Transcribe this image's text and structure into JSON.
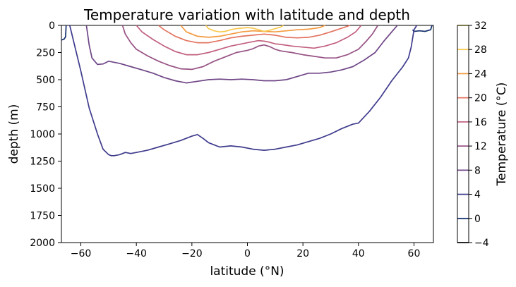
{
  "chart_data": {
    "type": "contour",
    "title": "Temperature variation with latitude and depth",
    "xlabel": "latitude (°N)",
    "ylabel": "depth (m)",
    "xlim": [
      -67,
      67
    ],
    "ylim": [
      2000,
      0
    ],
    "x_ticks": [
      -60,
      -40,
      -20,
      0,
      20,
      40,
      60
    ],
    "y_ticks": [
      0,
      250,
      500,
      750,
      1000,
      1250,
      1500,
      1750,
      2000
    ],
    "x_tick_labels": [
      "−60",
      "−40",
      "−20",
      "0",
      "20",
      "40",
      "60"
    ],
    "y_tick_labels": [
      "0",
      "250",
      "500",
      "750",
      "1000",
      "1250",
      "1500",
      "1750",
      "2000"
    ],
    "grid": false,
    "colorbar": {
      "label": "Temperature (°C)",
      "ticks": [
        -4,
        0,
        4,
        8,
        12,
        16,
        20,
        24,
        28,
        32
      ],
      "tick_labels": [
        "−4",
        "0",
        "4",
        "8",
        "12",
        "16",
        "20",
        "24",
        "28",
        "32"
      ],
      "colors": {
        "-4": "#000004",
        "0": "#13306d",
        "4": "#3e3b8c",
        "8": "#6e4586",
        "12": "#975184",
        "16": "#c25f7e",
        "20": "#e2735f",
        "24": "#f39a3f",
        "28": "#f8c84f",
        "32": "#f2ed6f"
      }
    },
    "series": [
      {
        "level": 0,
        "x": [
          -67,
          -66,
          -65.5,
          -65.3
        ],
        "y": [
          135,
          125,
          105,
          0
        ]
      },
      {
        "level": 0,
        "x": [
          59.5,
          60,
          62,
          64,
          66,
          66.5
        ],
        "y": [
          40,
          55,
          50,
          55,
          40,
          0
        ]
      },
      {
        "level": 4,
        "x": [
          -64,
          -60,
          -57,
          -54,
          -52,
          -50,
          -49,
          -48,
          -46,
          -44,
          -42,
          -40,
          -36,
          -32,
          -28,
          -24,
          -20,
          -18,
          -16,
          -14,
          -12,
          -10,
          -6,
          -2,
          2,
          6,
          10,
          14,
          18,
          22,
          26,
          30,
          34,
          38,
          40,
          44,
          48,
          52,
          56,
          58,
          59,
          60,
          61
        ],
        "y": [
          0,
          420,
          760,
          1000,
          1140,
          1190,
          1200,
          1200,
          1190,
          1170,
          1180,
          1170,
          1150,
          1120,
          1090,
          1060,
          1020,
          1005,
          1040,
          1080,
          1100,
          1120,
          1110,
          1120,
          1140,
          1150,
          1140,
          1120,
          1100,
          1070,
          1040,
          1000,
          950,
          910,
          900,
          790,
          660,
          510,
          380,
          300,
          200,
          40,
          0
        ]
      },
      {
        "level": 8,
        "x": [
          -58,
          -57,
          -56,
          -54,
          -52,
          -50,
          -46,
          -42,
          -38,
          -34,
          -30,
          -26,
          -22,
          -18,
          -14,
          -10,
          -6,
          -2,
          2,
          6,
          10,
          14,
          18,
          22,
          26,
          30,
          34,
          38,
          42,
          46,
          49,
          52,
          54
        ],
        "y": [
          0,
          180,
          300,
          360,
          355,
          330,
          350,
          380,
          410,
          440,
          480,
          510,
          530,
          515,
          500,
          495,
          500,
          495,
          500,
          510,
          510,
          500,
          470,
          440,
          440,
          430,
          410,
          380,
          320,
          250,
          150,
          60,
          0
        ]
      },
      {
        "level": 12,
        "x": [
          -45,
          -44,
          -42,
          -40,
          -36,
          -32,
          -28,
          -24,
          -20,
          -16,
          -12,
          -8,
          -4,
          0,
          2,
          4,
          6,
          8,
          10,
          12,
          16,
          20,
          24,
          28,
          32,
          36,
          40,
          43,
          45,
          47
        ],
        "y": [
          0,
          80,
          160,
          220,
          280,
          330,
          370,
          400,
          405,
          380,
          330,
          290,
          250,
          230,
          215,
          190,
          180,
          195,
          220,
          235,
          250,
          270,
          285,
          300,
          300,
          270,
          220,
          140,
          80,
          0
        ]
      },
      {
        "level": 16,
        "x": [
          -40,
          -38,
          -34,
          -30,
          -26,
          -22,
          -18,
          -14,
          -10,
          -6,
          -2,
          0,
          2,
          4,
          6,
          8,
          10,
          12,
          16,
          20,
          24,
          28,
          32,
          36,
          39,
          41
        ],
        "y": [
          0,
          60,
          130,
          190,
          240,
          270,
          270,
          250,
          220,
          190,
          170,
          160,
          150,
          140,
          145,
          155,
          170,
          175,
          190,
          200,
          210,
          190,
          160,
          110,
          60,
          0
        ]
      },
      {
        "level": 20,
        "x": [
          -32,
          -30,
          -26,
          -22,
          -18,
          -14,
          -10,
          -6,
          -2,
          2,
          6,
          10,
          14,
          18,
          22,
          26,
          30,
          34,
          37
        ],
        "y": [
          0,
          40,
          100,
          140,
          160,
          160,
          140,
          115,
          100,
          90,
          80,
          90,
          110,
          115,
          110,
          90,
          60,
          25,
          0
        ]
      },
      {
        "level": 24,
        "x": [
          -24,
          -22,
          -18,
          -14,
          -10,
          -6,
          -2,
          2,
          6,
          10,
          14,
          18,
          22,
          26,
          28
        ],
        "y": [
          0,
          60,
          100,
          110,
          100,
          80,
          60,
          50,
          55,
          60,
          50,
          40,
          35,
          20,
          0
        ]
      },
      {
        "level": 28,
        "x": [
          -15,
          -14,
          -12,
          -10,
          -8,
          -6,
          -4,
          -2,
          0,
          2,
          4,
          6,
          8,
          10,
          12,
          13
        ],
        "y": [
          0,
          30,
          50,
          60,
          55,
          40,
          30,
          25,
          20,
          25,
          40,
          55,
          45,
          30,
          15,
          0
        ]
      }
    ]
  }
}
